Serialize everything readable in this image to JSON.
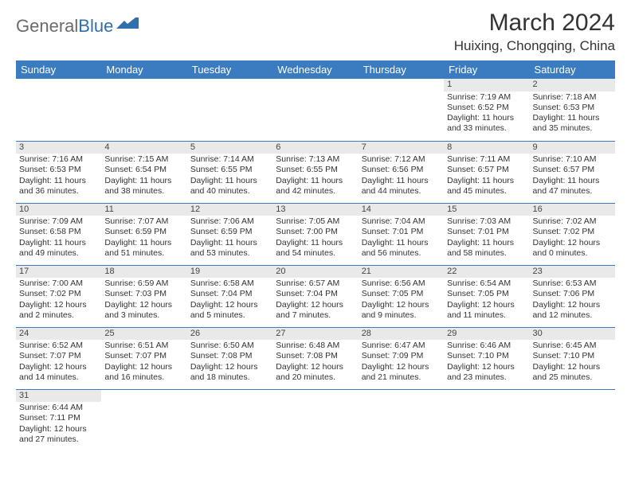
{
  "logo": {
    "general": "General",
    "blue": "Blue"
  },
  "title": "March 2024",
  "location": "Huixing, Chongqing, China",
  "colors": {
    "header_bg": "#3b7bbf",
    "header_text": "#ffffff",
    "daynum_bg": "#e9e9e9",
    "border": "#3b7bbf",
    "text": "#333333"
  },
  "weekdays": [
    "Sunday",
    "Monday",
    "Tuesday",
    "Wednesday",
    "Thursday",
    "Friday",
    "Saturday"
  ],
  "weeks": [
    [
      null,
      null,
      null,
      null,
      null,
      {
        "n": "1",
        "sr": "Sunrise: 7:19 AM",
        "ss": "Sunset: 6:52 PM",
        "dl": "Daylight: 11 hours and 33 minutes."
      },
      {
        "n": "2",
        "sr": "Sunrise: 7:18 AM",
        "ss": "Sunset: 6:53 PM",
        "dl": "Daylight: 11 hours and 35 minutes."
      }
    ],
    [
      {
        "n": "3",
        "sr": "Sunrise: 7:16 AM",
        "ss": "Sunset: 6:53 PM",
        "dl": "Daylight: 11 hours and 36 minutes."
      },
      {
        "n": "4",
        "sr": "Sunrise: 7:15 AM",
        "ss": "Sunset: 6:54 PM",
        "dl": "Daylight: 11 hours and 38 minutes."
      },
      {
        "n": "5",
        "sr": "Sunrise: 7:14 AM",
        "ss": "Sunset: 6:55 PM",
        "dl": "Daylight: 11 hours and 40 minutes."
      },
      {
        "n": "6",
        "sr": "Sunrise: 7:13 AM",
        "ss": "Sunset: 6:55 PM",
        "dl": "Daylight: 11 hours and 42 minutes."
      },
      {
        "n": "7",
        "sr": "Sunrise: 7:12 AM",
        "ss": "Sunset: 6:56 PM",
        "dl": "Daylight: 11 hours and 44 minutes."
      },
      {
        "n": "8",
        "sr": "Sunrise: 7:11 AM",
        "ss": "Sunset: 6:57 PM",
        "dl": "Daylight: 11 hours and 45 minutes."
      },
      {
        "n": "9",
        "sr": "Sunrise: 7:10 AM",
        "ss": "Sunset: 6:57 PM",
        "dl": "Daylight: 11 hours and 47 minutes."
      }
    ],
    [
      {
        "n": "10",
        "sr": "Sunrise: 7:09 AM",
        "ss": "Sunset: 6:58 PM",
        "dl": "Daylight: 11 hours and 49 minutes."
      },
      {
        "n": "11",
        "sr": "Sunrise: 7:07 AM",
        "ss": "Sunset: 6:59 PM",
        "dl": "Daylight: 11 hours and 51 minutes."
      },
      {
        "n": "12",
        "sr": "Sunrise: 7:06 AM",
        "ss": "Sunset: 6:59 PM",
        "dl": "Daylight: 11 hours and 53 minutes."
      },
      {
        "n": "13",
        "sr": "Sunrise: 7:05 AM",
        "ss": "Sunset: 7:00 PM",
        "dl": "Daylight: 11 hours and 54 minutes."
      },
      {
        "n": "14",
        "sr": "Sunrise: 7:04 AM",
        "ss": "Sunset: 7:01 PM",
        "dl": "Daylight: 11 hours and 56 minutes."
      },
      {
        "n": "15",
        "sr": "Sunrise: 7:03 AM",
        "ss": "Sunset: 7:01 PM",
        "dl": "Daylight: 11 hours and 58 minutes."
      },
      {
        "n": "16",
        "sr": "Sunrise: 7:02 AM",
        "ss": "Sunset: 7:02 PM",
        "dl": "Daylight: 12 hours and 0 minutes."
      }
    ],
    [
      {
        "n": "17",
        "sr": "Sunrise: 7:00 AM",
        "ss": "Sunset: 7:02 PM",
        "dl": "Daylight: 12 hours and 2 minutes."
      },
      {
        "n": "18",
        "sr": "Sunrise: 6:59 AM",
        "ss": "Sunset: 7:03 PM",
        "dl": "Daylight: 12 hours and 3 minutes."
      },
      {
        "n": "19",
        "sr": "Sunrise: 6:58 AM",
        "ss": "Sunset: 7:04 PM",
        "dl": "Daylight: 12 hours and 5 minutes."
      },
      {
        "n": "20",
        "sr": "Sunrise: 6:57 AM",
        "ss": "Sunset: 7:04 PM",
        "dl": "Daylight: 12 hours and 7 minutes."
      },
      {
        "n": "21",
        "sr": "Sunrise: 6:56 AM",
        "ss": "Sunset: 7:05 PM",
        "dl": "Daylight: 12 hours and 9 minutes."
      },
      {
        "n": "22",
        "sr": "Sunrise: 6:54 AM",
        "ss": "Sunset: 7:05 PM",
        "dl": "Daylight: 12 hours and 11 minutes."
      },
      {
        "n": "23",
        "sr": "Sunrise: 6:53 AM",
        "ss": "Sunset: 7:06 PM",
        "dl": "Daylight: 12 hours and 12 minutes."
      }
    ],
    [
      {
        "n": "24",
        "sr": "Sunrise: 6:52 AM",
        "ss": "Sunset: 7:07 PM",
        "dl": "Daylight: 12 hours and 14 minutes."
      },
      {
        "n": "25",
        "sr": "Sunrise: 6:51 AM",
        "ss": "Sunset: 7:07 PM",
        "dl": "Daylight: 12 hours and 16 minutes."
      },
      {
        "n": "26",
        "sr": "Sunrise: 6:50 AM",
        "ss": "Sunset: 7:08 PM",
        "dl": "Daylight: 12 hours and 18 minutes."
      },
      {
        "n": "27",
        "sr": "Sunrise: 6:48 AM",
        "ss": "Sunset: 7:08 PM",
        "dl": "Daylight: 12 hours and 20 minutes."
      },
      {
        "n": "28",
        "sr": "Sunrise: 6:47 AM",
        "ss": "Sunset: 7:09 PM",
        "dl": "Daylight: 12 hours and 21 minutes."
      },
      {
        "n": "29",
        "sr": "Sunrise: 6:46 AM",
        "ss": "Sunset: 7:10 PM",
        "dl": "Daylight: 12 hours and 23 minutes."
      },
      {
        "n": "30",
        "sr": "Sunrise: 6:45 AM",
        "ss": "Sunset: 7:10 PM",
        "dl": "Daylight: 12 hours and 25 minutes."
      }
    ],
    [
      {
        "n": "31",
        "sr": "Sunrise: 6:44 AM",
        "ss": "Sunset: 7:11 PM",
        "dl": "Daylight: 12 hours and 27 minutes."
      },
      null,
      null,
      null,
      null,
      null,
      null
    ]
  ]
}
